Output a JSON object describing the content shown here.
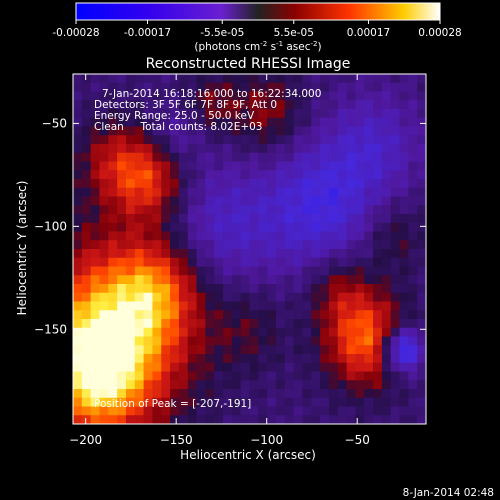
{
  "chart_data": {
    "type": "heatmap",
    "title": "Reconstructed RHESSI Image",
    "xlabel": "Heliocentric X (arcsec)",
    "ylabel": "Heliocentric Y (arcsec)",
    "xlim": [
      -207,
      -12
    ],
    "ylim": [
      -196,
      -26
    ],
    "x_ticks": [
      -200,
      -150,
      -100,
      -50
    ],
    "y_ticks": [
      -50,
      -100,
      -150
    ],
    "colorbar": {
      "ticks": [
        "-0.00028",
        "-0.00017",
        "-5.5e-05",
        "5.5e-05",
        "0.00017",
        "0.00028"
      ],
      "tick_values": [
        -0.00028,
        -0.00017,
        -5.5e-05,
        5.5e-05,
        0.00017,
        0.00028
      ],
      "range": [
        -0.00028,
        0.00028
      ],
      "unit_parts": [
        "(photons cm",
        "-2",
        " s",
        "-1",
        " asec",
        "-2",
        ")"
      ]
    },
    "info_lines": [
      "7-Jan-2014 16:18:16.000 to 16:22:34.000",
      "Detectors: 3F 5F 6F 7F 8F 9F, Att 0",
      "Energy Range: 25.0 - 50.0 keV",
      "Clean     Total counts: 8.02E+03"
    ],
    "peak_label": "Position of Peak = [-207,-191]",
    "blobs": [
      {
        "x": -185,
        "y": -150,
        "value": 0.00028,
        "sigma": 30
      },
      {
        "x": -160,
        "y": -130,
        "value": 0.00012,
        "sigma": 16
      },
      {
        "x": -195,
        "y": -175,
        "value": 0.00018,
        "sigma": 20
      },
      {
        "x": -165,
        "y": -78,
        "value": 0.00016,
        "sigma": 14
      },
      {
        "x": -185,
        "y": -68,
        "value": 0.00011,
        "sigma": 14
      },
      {
        "x": -100,
        "y": -45,
        "value": 0.0001,
        "sigma": 14
      },
      {
        "x": -130,
        "y": -40,
        "value": 8e-05,
        "sigma": 10
      },
      {
        "x": -45,
        "y": -155,
        "value": 0.00022,
        "sigma": 16
      },
      {
        "x": -60,
        "y": -130,
        "value": 9e-05,
        "sigma": 12
      },
      {
        "x": -30,
        "y": -105,
        "value": 7e-05,
        "sigma": 12
      },
      {
        "x": -110,
        "y": -150,
        "value": 6e-05,
        "sigma": 14
      },
      {
        "x": -125,
        "y": -100,
        "value": -0.0001,
        "sigma": 22
      },
      {
        "x": -70,
        "y": -90,
        "value": -0.00014,
        "sigma": 22
      },
      {
        "x": -25,
        "y": -160,
        "value": -0.00025,
        "sigma": 8
      },
      {
        "x": -40,
        "y": -60,
        "value": -9e-05,
        "sigma": 18
      },
      {
        "x": -150,
        "y": -55,
        "value": -6e-05,
        "sigma": 10
      }
    ]
  },
  "footer_date": "8-Jan-2014 02:48"
}
